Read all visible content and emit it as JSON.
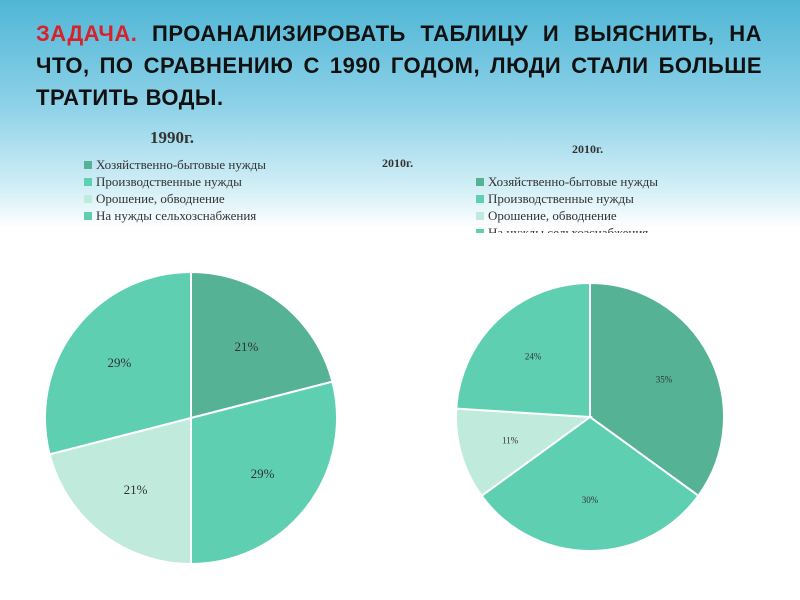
{
  "task": {
    "label": "ЗАДАЧА.",
    "text": "ПРОАНАЛИЗИРОВАТЬ ТАБЛИЦУ И ВЫЯСНИТЬ, НА ЧТО, ПО СРАВНЕНИЮ С 1990 ГОДОМ, ЛЮДИ СТАЛИ БОЛЬШЕ ТРАТИТЬ ВОДЫ."
  },
  "middle_title": "2010г.",
  "chart_data": [
    {
      "type": "pie",
      "title": "1990г.",
      "categories": [
        "Хозяйственно-бытовые нужды",
        "Производственные нужды",
        "Орошение, обводнение",
        "На нужды сельхозснабжения"
      ],
      "values": [
        21,
        29,
        21,
        29
      ],
      "labels": [
        "21%",
        "29%",
        "21%",
        "29%"
      ],
      "colors": [
        "#55b294",
        "#5ecfb0",
        "#bfeadc",
        "#5ecfb0"
      ],
      "legend_position": "top"
    },
    {
      "type": "pie",
      "title": "2010г.",
      "categories": [
        "Хозяйственно-бытовые нужды",
        "Производственные нужды",
        "Орошение, обводнение",
        "На нужды сельхозснабжения"
      ],
      "values": [
        35,
        30,
        11,
        24
      ],
      "labels": [
        "35%",
        "30%",
        "11%",
        "24%"
      ],
      "colors": [
        "#55b294",
        "#5ecfb0",
        "#bfeadc",
        "#5ecfb0"
      ],
      "legend_position": "top"
    }
  ]
}
